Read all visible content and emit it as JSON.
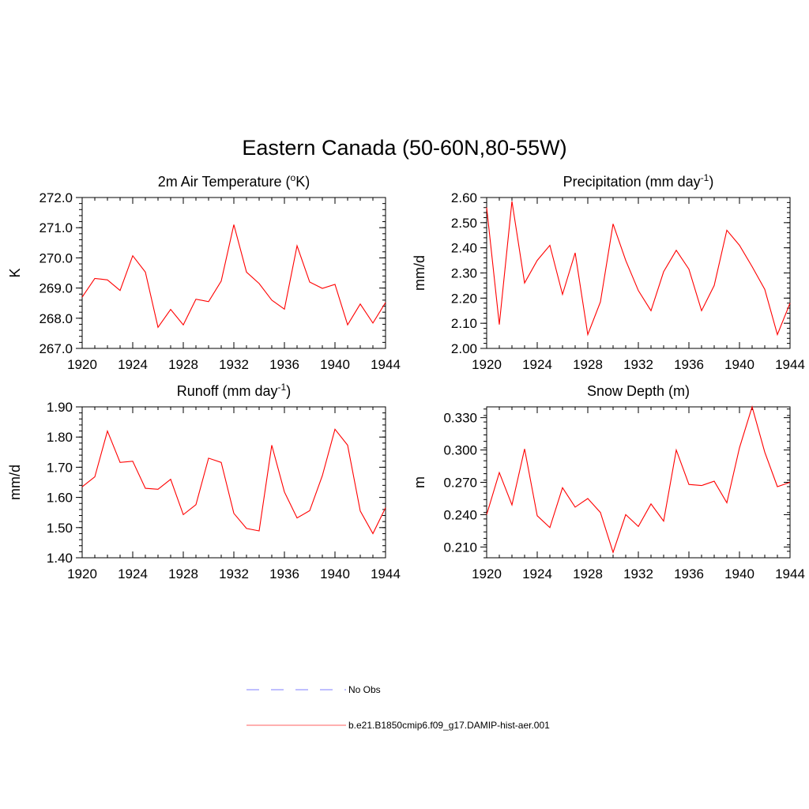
{
  "title": "Eastern Canada (50-60N,80-55W)",
  "colors": {
    "model": "#ff0000",
    "obs": "#9999ff"
  },
  "legend": {
    "obs_label": "No Obs",
    "model_label": "b.e21.B1850cmip6.f09_g17.DAMIP-hist-aer.001"
  },
  "chart_data": [
    {
      "type": "line",
      "title": "2m Air Temperature (oK)",
      "title_base": "2m Air Temperature (",
      "title_sup": "o",
      "title_tail": "K)",
      "ylabel": "K",
      "xlim": [
        1920,
        1944
      ],
      "ylim": [
        267.0,
        272.0
      ],
      "xticks": [
        "1920",
        "1924",
        "1928",
        "1932",
        "1936",
        "1940",
        "1944"
      ],
      "yticks": [
        "267.0",
        "268.0",
        "269.0",
        "270.0",
        "271.0",
        "272.0"
      ],
      "series": [
        {
          "x": [
            1920,
            1921,
            1922,
            1923,
            1924,
            1925,
            1926,
            1927,
            1928,
            1929,
            1930,
            1931,
            1932,
            1933,
            1934,
            1935,
            1936,
            1937,
            1938,
            1939,
            1940,
            1941,
            1942,
            1943,
            1944
          ],
          "y": [
            268.7,
            269.32,
            269.27,
            268.92,
            270.07,
            269.53,
            267.7,
            268.29,
            267.78,
            268.63,
            268.55,
            269.23,
            271.1,
            269.53,
            269.15,
            268.6,
            268.3,
            270.4,
            269.2,
            268.99,
            269.12,
            267.78,
            268.47,
            267.84,
            268.52
          ]
        }
      ]
    },
    {
      "type": "line",
      "title": "Precipitation (mm day-1)",
      "title_base": "Precipitation (mm day",
      "title_sup": "-1",
      "title_tail": ")",
      "ylabel": "mm/d",
      "xlim": [
        1920,
        1944
      ],
      "ylim": [
        2.0,
        2.6
      ],
      "xticks": [
        "1920",
        "1924",
        "1928",
        "1932",
        "1936",
        "1940",
        "1944"
      ],
      "yticks": [
        "2.00",
        "2.10",
        "2.20",
        "2.30",
        "2.40",
        "2.50",
        "2.60"
      ],
      "series": [
        {
          "x": [
            1920,
            1921,
            1922,
            1923,
            1924,
            1925,
            1926,
            1927,
            1928,
            1929,
            1930,
            1931,
            1932,
            1933,
            1934,
            1935,
            1936,
            1937,
            1938,
            1939,
            1940,
            1941,
            1942,
            1943,
            1944
          ],
          "y": [
            2.56,
            2.095,
            2.585,
            2.26,
            2.35,
            2.41,
            2.215,
            2.38,
            2.055,
            2.185,
            2.495,
            2.35,
            2.23,
            2.15,
            2.305,
            2.39,
            2.315,
            2.15,
            2.25,
            2.47,
            2.41,
            2.325,
            2.235,
            2.055,
            2.18
          ]
        }
      ]
    },
    {
      "type": "line",
      "title": "Runoff (mm day-1)",
      "title_base": "Runoff (mm day",
      "title_sup": "-1",
      "title_tail": ")",
      "ylabel": "mm/d",
      "xlim": [
        1920,
        1944
      ],
      "ylim": [
        1.4,
        1.9
      ],
      "xticks": [
        "1920",
        "1924",
        "1928",
        "1932",
        "1936",
        "1940",
        "1944"
      ],
      "yticks": [
        "1.40",
        "1.50",
        "1.60",
        "1.70",
        "1.80",
        "1.90"
      ],
      "series": [
        {
          "x": [
            1920,
            1921,
            1922,
            1923,
            1924,
            1925,
            1926,
            1927,
            1928,
            1929,
            1930,
            1931,
            1932,
            1933,
            1934,
            1935,
            1936,
            1937,
            1938,
            1939,
            1940,
            1941,
            1942,
            1943,
            1944
          ],
          "y": [
            1.635,
            1.668,
            1.82,
            1.716,
            1.72,
            1.63,
            1.627,
            1.66,
            1.543,
            1.576,
            1.73,
            1.716,
            1.547,
            1.497,
            1.489,
            1.773,
            1.618,
            1.532,
            1.556,
            1.672,
            1.826,
            1.773,
            1.555,
            1.48,
            1.566
          ]
        }
      ]
    },
    {
      "type": "line",
      "title": "Snow Depth (m)",
      "title_base": "Snow Depth (m)",
      "title_sup": "",
      "title_tail": "",
      "ylabel": "m",
      "xlim": [
        1920,
        1944
      ],
      "ylim": [
        0.2,
        0.34
      ],
      "xticks": [
        "1920",
        "1924",
        "1928",
        "1932",
        "1936",
        "1940",
        "1944"
      ],
      "yticks": [
        "0.210",
        "0.240",
        "0.270",
        "0.300",
        "0.330"
      ],
      "series": [
        {
          "x": [
            1920,
            1921,
            1922,
            1923,
            1924,
            1925,
            1926,
            1927,
            1928,
            1929,
            1930,
            1931,
            1932,
            1933,
            1934,
            1935,
            1936,
            1937,
            1938,
            1939,
            1940,
            1941,
            1942,
            1943,
            1944
          ],
          "y": [
            0.24,
            0.279,
            0.249,
            0.301,
            0.239,
            0.228,
            0.265,
            0.247,
            0.255,
            0.242,
            0.205,
            0.24,
            0.229,
            0.25,
            0.234,
            0.3,
            0.268,
            0.267,
            0.271,
            0.251,
            0.302,
            0.34,
            0.298,
            0.266,
            0.27
          ]
        }
      ]
    }
  ]
}
